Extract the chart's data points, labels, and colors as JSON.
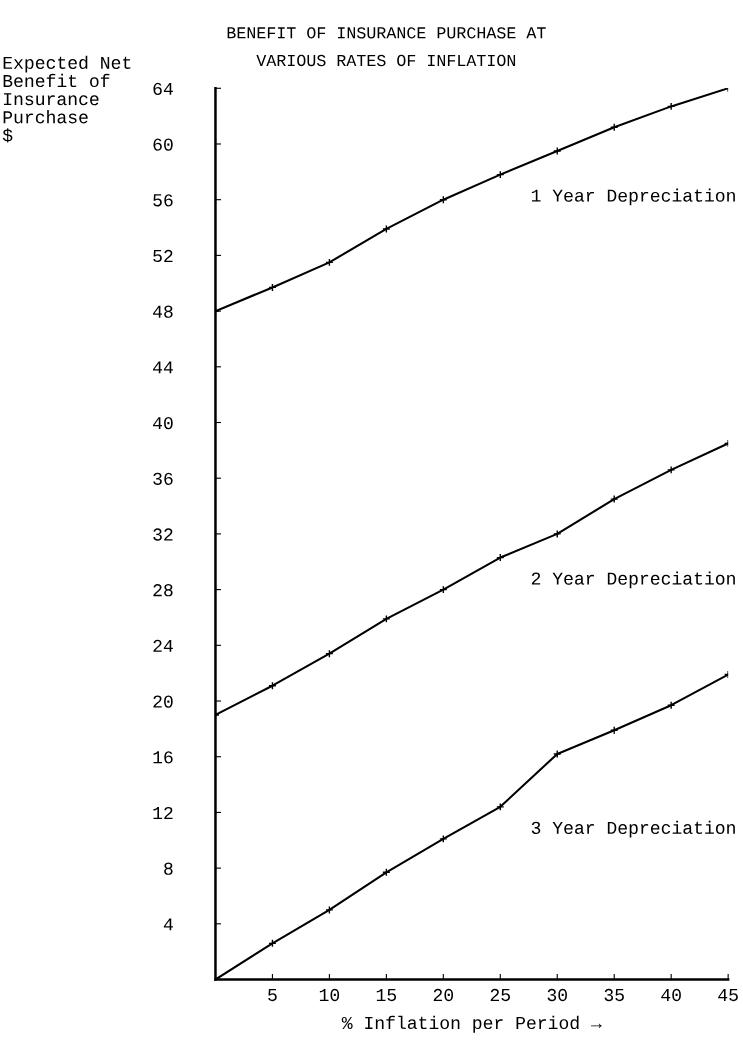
{
  "chart_data": {
    "type": "line",
    "title": "BENEFIT OF INSURANCE PURCHASE AT\nVARIOUS RATES OF INFLATION",
    "ylabel": "Expected Net\nBenefit of\nInsurance\nPurchase\n$",
    "xlabel": "% Inflation per Period →",
    "x": [
      0,
      5,
      10,
      15,
      20,
      25,
      30,
      35,
      40,
      45
    ],
    "series": [
      {
        "name": "1 Year Depreciation",
        "color": "#000000",
        "values": [
          48,
          49.7,
          51.5,
          53.9,
          56,
          57.8,
          59.5,
          61.2,
          62.7,
          64
        ]
      },
      {
        "name": "2 Year Depreciation",
        "color": "#000000",
        "values": [
          19,
          21.1,
          23.4,
          25.9,
          28,
          30.3,
          32,
          34.5,
          36.6,
          38.5
        ]
      },
      {
        "name": "3 Year Depreciation",
        "color": "#000000",
        "values": [
          0,
          2.6,
          5.0,
          7.7,
          10.1,
          12.4,
          16.2,
          17.9,
          19.7,
          21.9
        ]
      }
    ],
    "xlim": [
      0,
      45
    ],
    "xticks": [
      5,
      10,
      15,
      20,
      25,
      30,
      35,
      40,
      45
    ],
    "ylim": [
      0,
      64
    ],
    "yticks": [
      4,
      8,
      12,
      16,
      20,
      24,
      28,
      32,
      36,
      40,
      44,
      48,
      52,
      56,
      60,
      64
    ],
    "grid": false,
    "legend": false,
    "marker": "cross",
    "line_style": "solid"
  }
}
